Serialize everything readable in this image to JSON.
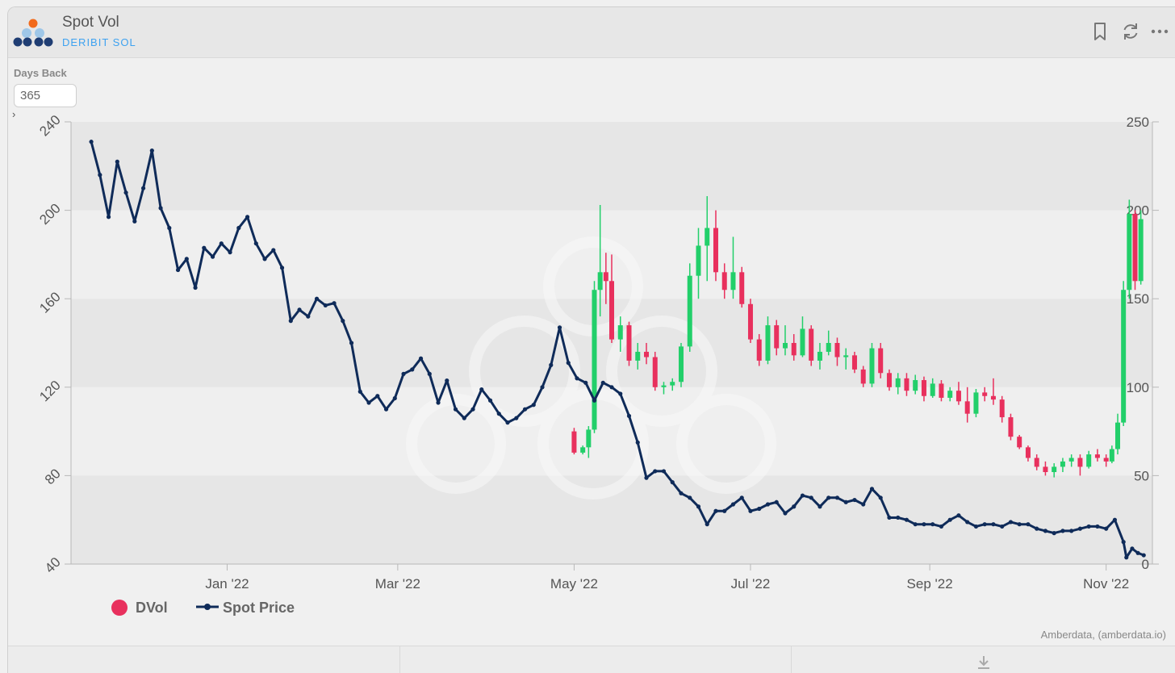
{
  "header": {
    "title": "Spot Vol",
    "subtitle": "DERIBIT SOL",
    "icons": [
      "logo-icon",
      "bookmark-icon",
      "refresh-icon",
      "more-icon"
    ]
  },
  "controls": {
    "days_back_label": "Days Back",
    "days_back_value": "365"
  },
  "credit": "Amberdata, (amberdata.io)",
  "colors": {
    "spot": "#0f2b59",
    "dvol_up": "#22cf6a",
    "dvol_down": "#e8305d",
    "legend_dvol": "#e8305d"
  },
  "chart_data": {
    "type": "line",
    "title": "",
    "legend": [
      "DVol",
      "Spot Price"
    ],
    "x_ticks": [
      "Jan '22",
      "Mar '22",
      "May '22",
      "Jul '22",
      "Sep '22",
      "Nov '22"
    ],
    "x_tick_dates": [
      "2022-01-01",
      "2022-03-01",
      "2022-05-01",
      "2022-07-01",
      "2022-09-01",
      "2022-11-01"
    ],
    "x_range": [
      "2021-11-08",
      "2022-11-17"
    ],
    "y_left": {
      "label": "",
      "range": [
        40,
        240
      ],
      "ticks": [
        40,
        80,
        120,
        160,
        200,
        240
      ]
    },
    "y_right": {
      "label": "",
      "range": [
        0,
        250
      ],
      "ticks": [
        0,
        50,
        100,
        150,
        200,
        250
      ]
    },
    "series": [
      {
        "name": "Spot Price",
        "axis": "left",
        "type": "line",
        "points": [
          [
            "2021-11-15",
            231
          ],
          [
            "2021-11-18",
            216
          ],
          [
            "2021-11-21",
            197
          ],
          [
            "2021-11-24",
            222
          ],
          [
            "2021-11-27",
            208
          ],
          [
            "2021-11-30",
            195
          ],
          [
            "2021-12-03",
            210
          ],
          [
            "2021-12-06",
            227
          ],
          [
            "2021-12-09",
            201
          ],
          [
            "2021-12-12",
            192
          ],
          [
            "2021-12-15",
            173
          ],
          [
            "2021-12-18",
            178
          ],
          [
            "2021-12-21",
            165
          ],
          [
            "2021-12-24",
            183
          ],
          [
            "2021-12-27",
            179
          ],
          [
            "2021-12-30",
            185
          ],
          [
            "2022-01-02",
            181
          ],
          [
            "2022-01-05",
            192
          ],
          [
            "2022-01-08",
            197
          ],
          [
            "2022-01-11",
            185
          ],
          [
            "2022-01-14",
            178
          ],
          [
            "2022-01-17",
            182
          ],
          [
            "2022-01-20",
            174
          ],
          [
            "2022-01-23",
            150
          ],
          [
            "2022-01-26",
            155
          ],
          [
            "2022-01-29",
            152
          ],
          [
            "2022-02-01",
            160
          ],
          [
            "2022-02-04",
            157
          ],
          [
            "2022-02-07",
            158
          ],
          [
            "2022-02-10",
            150
          ],
          [
            "2022-02-13",
            140
          ],
          [
            "2022-02-16",
            118
          ],
          [
            "2022-02-19",
            113
          ],
          [
            "2022-02-22",
            116
          ],
          [
            "2022-02-25",
            110
          ],
          [
            "2022-02-28",
            115
          ],
          [
            "2022-03-03",
            126
          ],
          [
            "2022-03-06",
            128
          ],
          [
            "2022-03-09",
            133
          ],
          [
            "2022-03-12",
            126
          ],
          [
            "2022-03-15",
            113
          ],
          [
            "2022-03-18",
            123
          ],
          [
            "2022-03-21",
            110
          ],
          [
            "2022-03-24",
            106
          ],
          [
            "2022-03-27",
            110
          ],
          [
            "2022-03-30",
            119
          ],
          [
            "2022-04-02",
            114
          ],
          [
            "2022-04-05",
            108
          ],
          [
            "2022-04-08",
            104
          ],
          [
            "2022-04-11",
            106
          ],
          [
            "2022-04-14",
            110
          ],
          [
            "2022-04-17",
            112
          ],
          [
            "2022-04-20",
            120
          ],
          [
            "2022-04-23",
            130
          ],
          [
            "2022-04-26",
            147
          ],
          [
            "2022-04-29",
            131
          ],
          [
            "2022-05-02",
            124
          ],
          [
            "2022-05-05",
            122
          ],
          [
            "2022-05-08",
            114
          ],
          [
            "2022-05-11",
            122
          ],
          [
            "2022-05-14",
            120
          ],
          [
            "2022-05-17",
            117
          ],
          [
            "2022-05-20",
            107
          ],
          [
            "2022-05-23",
            95
          ],
          [
            "2022-05-26",
            79
          ],
          [
            "2022-05-29",
            82
          ],
          [
            "2022-06-01",
            82
          ],
          [
            "2022-06-04",
            77
          ],
          [
            "2022-06-07",
            72
          ],
          [
            "2022-06-10",
            70
          ],
          [
            "2022-06-13",
            66
          ],
          [
            "2022-06-16",
            58
          ],
          [
            "2022-06-19",
            64
          ],
          [
            "2022-06-22",
            64
          ],
          [
            "2022-06-25",
            67
          ],
          [
            "2022-06-28",
            70
          ],
          [
            "2022-07-01",
            64
          ],
          [
            "2022-07-04",
            65
          ],
          [
            "2022-07-07",
            67
          ],
          [
            "2022-07-10",
            68
          ],
          [
            "2022-07-13",
            63
          ],
          [
            "2022-07-16",
            66
          ],
          [
            "2022-07-19",
            71
          ],
          [
            "2022-07-22",
            70
          ],
          [
            "2022-07-25",
            66
          ],
          [
            "2022-07-28",
            70
          ],
          [
            "2022-07-31",
            70
          ],
          [
            "2022-08-03",
            68
          ],
          [
            "2022-08-06",
            69
          ],
          [
            "2022-08-09",
            67
          ],
          [
            "2022-08-12",
            74
          ],
          [
            "2022-08-15",
            70
          ],
          [
            "2022-08-18",
            61
          ],
          [
            "2022-08-21",
            61
          ],
          [
            "2022-08-24",
            60
          ],
          [
            "2022-08-27",
            58
          ],
          [
            "2022-08-30",
            58
          ],
          [
            "2022-09-02",
            58
          ],
          [
            "2022-09-05",
            57
          ],
          [
            "2022-09-08",
            60
          ],
          [
            "2022-09-11",
            62
          ],
          [
            "2022-09-14",
            59
          ],
          [
            "2022-09-17",
            57
          ],
          [
            "2022-09-20",
            58
          ],
          [
            "2022-09-23",
            58
          ],
          [
            "2022-09-26",
            57
          ],
          [
            "2022-09-29",
            59
          ],
          [
            "2022-10-02",
            58
          ],
          [
            "2022-10-05",
            58
          ],
          [
            "2022-10-08",
            56
          ],
          [
            "2022-10-11",
            55
          ],
          [
            "2022-10-14",
            54
          ],
          [
            "2022-10-17",
            55
          ],
          [
            "2022-10-20",
            55
          ],
          [
            "2022-10-23",
            56
          ],
          [
            "2022-10-26",
            57
          ],
          [
            "2022-10-29",
            57
          ],
          [
            "2022-11-01",
            56
          ],
          [
            "2022-11-04",
            60
          ],
          [
            "2022-11-07",
            50
          ],
          [
            "2022-11-08",
            43
          ],
          [
            "2022-11-10",
            47
          ],
          [
            "2022-11-12",
            45
          ],
          [
            "2022-11-14",
            44
          ]
        ]
      },
      {
        "name": "DVol",
        "axis": "right",
        "type": "candlestick",
        "fields": [
          "date",
          "open",
          "high",
          "low",
          "close"
        ],
        "candles": [
          [
            "2022-05-01",
            75,
            77,
            62,
            63
          ],
          [
            "2022-05-04",
            63,
            67,
            62,
            66
          ],
          [
            "2022-05-06",
            66,
            78,
            60,
            76
          ],
          [
            "2022-05-08",
            76,
            160,
            74,
            155
          ],
          [
            "2022-05-10",
            155,
            203,
            140,
            165
          ],
          [
            "2022-05-12",
            165,
            176,
            147,
            160
          ],
          [
            "2022-05-14",
            160,
            175,
            125,
            127
          ],
          [
            "2022-05-17",
            127,
            140,
            120,
            135
          ],
          [
            "2022-05-20",
            135,
            137,
            112,
            115
          ],
          [
            "2022-05-23",
            115,
            125,
            110,
            120
          ],
          [
            "2022-05-26",
            120,
            125,
            113,
            117
          ],
          [
            "2022-05-29",
            117,
            120,
            98,
            100
          ],
          [
            "2022-06-01",
            100,
            103,
            96,
            101
          ],
          [
            "2022-06-04",
            101,
            105,
            98,
            103
          ],
          [
            "2022-06-07",
            103,
            125,
            100,
            123
          ],
          [
            "2022-06-10",
            123,
            170,
            120,
            163
          ],
          [
            "2022-06-13",
            163,
            190,
            150,
            180
          ],
          [
            "2022-06-16",
            180,
            208,
            160,
            190
          ],
          [
            "2022-06-19",
            190,
            200,
            160,
            165
          ],
          [
            "2022-06-22",
            165,
            170,
            150,
            155
          ],
          [
            "2022-06-25",
            155,
            185,
            150,
            165
          ],
          [
            "2022-06-28",
            165,
            168,
            145,
            147
          ],
          [
            "2022-07-01",
            147,
            150,
            125,
            127
          ],
          [
            "2022-07-04",
            127,
            130,
            112,
            115
          ],
          [
            "2022-07-07",
            115,
            140,
            113,
            135
          ],
          [
            "2022-07-10",
            135,
            138,
            118,
            122
          ],
          [
            "2022-07-13",
            122,
            135,
            118,
            125
          ],
          [
            "2022-07-16",
            125,
            130,
            115,
            118
          ],
          [
            "2022-07-19",
            118,
            140,
            117,
            133
          ],
          [
            "2022-07-22",
            133,
            135,
            112,
            115
          ],
          [
            "2022-07-25",
            115,
            125,
            110,
            120
          ],
          [
            "2022-07-28",
            120,
            132,
            118,
            125
          ],
          [
            "2022-07-31",
            125,
            128,
            112,
            117
          ],
          [
            "2022-08-03",
            117,
            122,
            110,
            118
          ],
          [
            "2022-08-06",
            118,
            120,
            108,
            110
          ],
          [
            "2022-08-09",
            110,
            112,
            100,
            102
          ],
          [
            "2022-08-12",
            102,
            125,
            100,
            122
          ],
          [
            "2022-08-15",
            122,
            125,
            105,
            108
          ],
          [
            "2022-08-18",
            108,
            110,
            98,
            100
          ],
          [
            "2022-08-21",
            100,
            108,
            96,
            105
          ],
          [
            "2022-08-24",
            105,
            108,
            95,
            98
          ],
          [
            "2022-08-27",
            98,
            107,
            96,
            104
          ],
          [
            "2022-08-30",
            104,
            106,
            92,
            95
          ],
          [
            "2022-09-02",
            95,
            105,
            94,
            102
          ],
          [
            "2022-09-05",
            102,
            104,
            92,
            94
          ],
          [
            "2022-09-08",
            94,
            100,
            92,
            98
          ],
          [
            "2022-09-11",
            98,
            103,
            90,
            92
          ],
          [
            "2022-09-14",
            92,
            100,
            80,
            85
          ],
          [
            "2022-09-17",
            85,
            99,
            83,
            97
          ],
          [
            "2022-09-20",
            97,
            100,
            92,
            95
          ],
          [
            "2022-09-23",
            95,
            105,
            90,
            93
          ],
          [
            "2022-09-26",
            93,
            95,
            80,
            83
          ],
          [
            "2022-09-29",
            83,
            85,
            70,
            72
          ],
          [
            "2022-10-02",
            72,
            73,
            65,
            66
          ],
          [
            "2022-10-05",
            66,
            67,
            58,
            60
          ],
          [
            "2022-10-08",
            60,
            62,
            53,
            55
          ],
          [
            "2022-10-11",
            55,
            58,
            50,
            52
          ],
          [
            "2022-10-14",
            52,
            57,
            49,
            55
          ],
          [
            "2022-10-17",
            55,
            60,
            52,
            58
          ],
          [
            "2022-10-20",
            58,
            62,
            55,
            60
          ],
          [
            "2022-10-23",
            60,
            62,
            50,
            55
          ],
          [
            "2022-10-26",
            55,
            64,
            54,
            62
          ],
          [
            "2022-10-29",
            62,
            65,
            58,
            60
          ],
          [
            "2022-11-01",
            60,
            62,
            55,
            58
          ],
          [
            "2022-11-03",
            58,
            67,
            57,
            65
          ],
          [
            "2022-11-05",
            65,
            85,
            62,
            80
          ],
          [
            "2022-11-07",
            80,
            160,
            78,
            155
          ],
          [
            "2022-11-09",
            155,
            206,
            150,
            198
          ],
          [
            "2022-11-11",
            198,
            200,
            155,
            160
          ],
          [
            "2022-11-13",
            160,
            200,
            158,
            195
          ]
        ]
      }
    ]
  }
}
